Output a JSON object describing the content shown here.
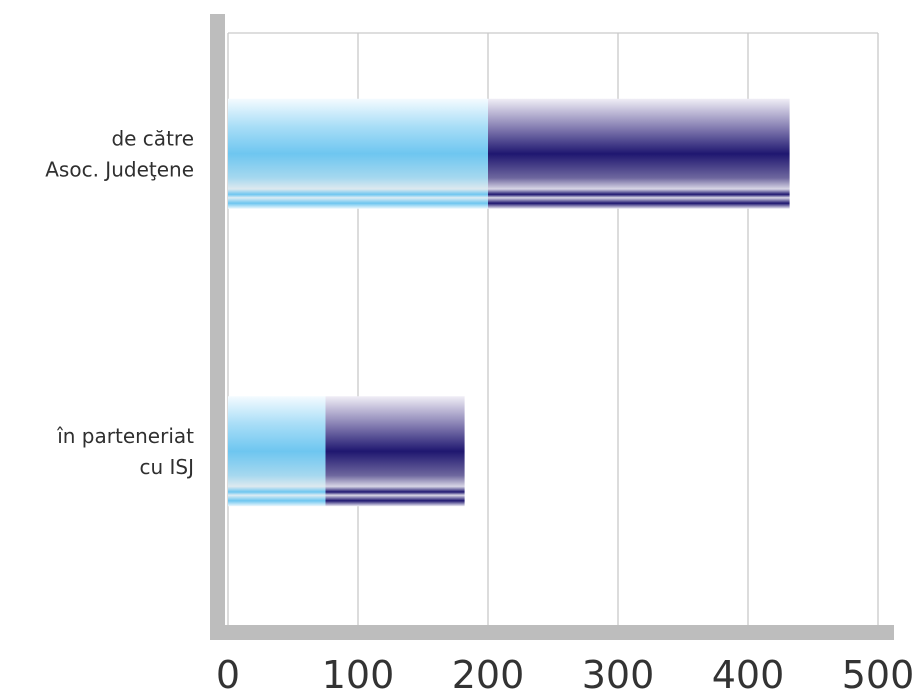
{
  "chart_data": {
    "type": "bar",
    "orientation": "horizontal",
    "stacked": true,
    "title": "",
    "xlabel": "",
    "ylabel": "",
    "categories": [
      [
        "de către",
        "Asoc. Judeţene"
      ],
      [
        "în parteneriat",
        "cu ISJ"
      ]
    ],
    "series": [
      {
        "values": [
          200,
          75
        ],
        "color": "#6ec6f0"
      },
      {
        "values": [
          232,
          107
        ],
        "color": "#1f1770"
      }
    ],
    "xlim": [
      0,
      500
    ],
    "x_ticks": [
      "0",
      "100",
      "200",
      "300",
      "400",
      "500"
    ],
    "grid": "vertical",
    "legend": "none"
  }
}
